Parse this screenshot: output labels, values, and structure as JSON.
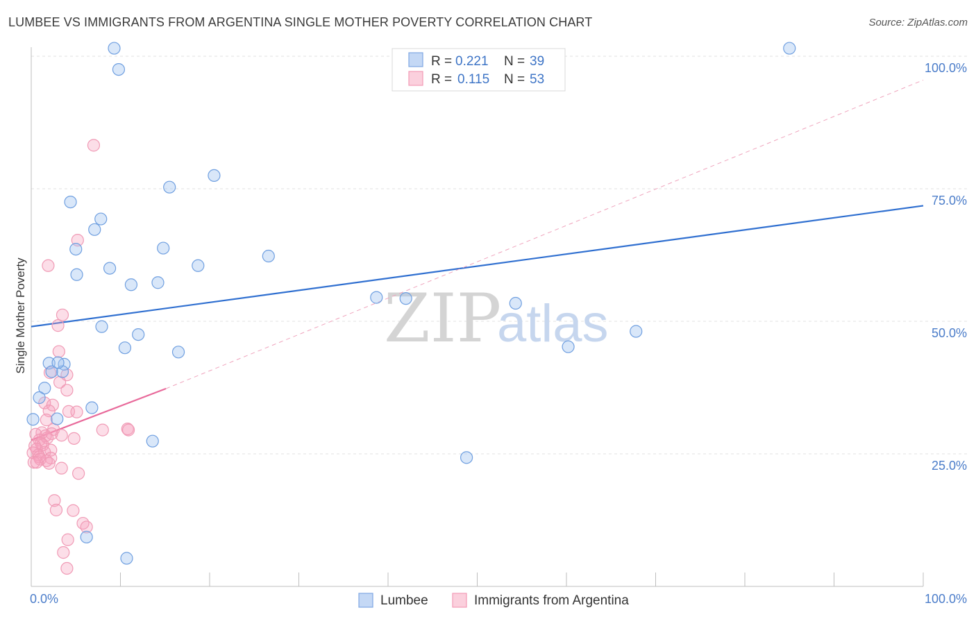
{
  "header": {
    "title": "LUMBEE VS IMMIGRANTS FROM ARGENTINA SINGLE MOTHER POVERTY CORRELATION CHART",
    "source": "Source: ZipAtlas.com"
  },
  "legend": {
    "rows": [
      {
        "r_label": "R =",
        "r_value": "0.221",
        "n_label": "N =",
        "n_value": "39"
      },
      {
        "r_label": "R =",
        "r_value": "0.115",
        "n_label": "N =",
        "n_value": "53"
      }
    ]
  },
  "watermark": {
    "zip": "ZIP",
    "atlas": "atlas"
  },
  "chart_data": {
    "type": "scatter",
    "title": "LUMBEE VS IMMIGRANTS FROM ARGENTINA SINGLE MOTHER POVERTY CORRELATION CHART",
    "xlabel": "",
    "ylabel": "Single Mother Poverty",
    "xlim": [
      0,
      100
    ],
    "ylim": [
      0,
      105
    ],
    "x_tick_labels": [
      "0.0%",
      "100.0%"
    ],
    "y_tick_labels": [
      "25.0%",
      "50.0%",
      "75.0%",
      "100.0%"
    ],
    "y_tick_values": [
      25,
      50,
      75,
      100
    ],
    "grid": "horizontal dashed",
    "legend_position": "top-center",
    "colors": {
      "lumbee": "#6f9fe0",
      "argentina": "#f08cab",
      "lumbee_line": "#2f6fd0",
      "argentina_line": "#e8699a"
    },
    "series": [
      {
        "name": "Lumbee",
        "r": 0.221,
        "n": 39,
        "points": [
          [
            9.3,
            101.5
          ],
          [
            9.8,
            97.5
          ],
          [
            85,
            101.5
          ],
          [
            15.5,
            75.3
          ],
          [
            20.5,
            77.5
          ],
          [
            4.4,
            72.5
          ],
          [
            7.8,
            69.3
          ],
          [
            7.1,
            67.3
          ],
          [
            14.8,
            63.8
          ],
          [
            5.0,
            63.6
          ],
          [
            26.6,
            62.3
          ],
          [
            8.8,
            60.0
          ],
          [
            18.7,
            60.5
          ],
          [
            5.1,
            58.8
          ],
          [
            11.2,
            56.9
          ],
          [
            14.2,
            57.3
          ],
          [
            54.3,
            53.4
          ],
          [
            42.0,
            54.3
          ],
          [
            38.7,
            54.5
          ],
          [
            7.9,
            49.0
          ],
          [
            12.0,
            47.5
          ],
          [
            60.2,
            45.2
          ],
          [
            10.5,
            45.0
          ],
          [
            16.5,
            44.2
          ],
          [
            2.0,
            42.1
          ],
          [
            3.7,
            41.9
          ],
          [
            3.5,
            40.5
          ],
          [
            2.3,
            40.5
          ],
          [
            1.5,
            37.4
          ],
          [
            0.9,
            35.6
          ],
          [
            6.8,
            33.7
          ],
          [
            2.9,
            31.6
          ],
          [
            0.2,
            31.5
          ],
          [
            13.6,
            27.4
          ],
          [
            48.8,
            24.3
          ],
          [
            6.2,
            9.3
          ],
          [
            10.7,
            5.3
          ],
          [
            67.8,
            48.1
          ],
          [
            3.0,
            42.2
          ]
        ],
        "trend": {
          "x": [
            0,
            100
          ],
          "y": [
            49.0,
            71.8
          ]
        }
      },
      {
        "name": "Immigrants from Argentina",
        "r": 0.115,
        "n": 53,
        "points": [
          [
            7.0,
            83.2
          ],
          [
            5.2,
            65.3
          ],
          [
            1.9,
            60.5
          ],
          [
            3.5,
            51.2
          ],
          [
            3.0,
            49.2
          ],
          [
            3.1,
            44.3
          ],
          [
            2.1,
            40.3
          ],
          [
            4.0,
            39.9
          ],
          [
            3.2,
            38.5
          ],
          [
            4.0,
            37.0
          ],
          [
            1.5,
            34.6
          ],
          [
            2.4,
            34.2
          ],
          [
            2.0,
            33.1
          ],
          [
            4.2,
            33.0
          ],
          [
            5.1,
            32.9
          ],
          [
            1.7,
            31.4
          ],
          [
            2.5,
            29.6
          ],
          [
            1.2,
            29.0
          ],
          [
            8.0,
            29.5
          ],
          [
            10.8,
            29.7
          ],
          [
            10.9,
            29.5
          ],
          [
            2.3,
            28.8
          ],
          [
            0.5,
            28.7
          ],
          [
            1.6,
            28.4
          ],
          [
            3.4,
            28.5
          ],
          [
            4.8,
            27.9
          ],
          [
            1.8,
            28.0
          ],
          [
            0.9,
            27.6
          ],
          [
            1.1,
            27.0
          ],
          [
            1.3,
            26.7
          ],
          [
            0.4,
            26.5
          ],
          [
            0.6,
            25.9
          ],
          [
            2.2,
            25.7
          ],
          [
            1.5,
            25.3
          ],
          [
            0.2,
            25.2
          ],
          [
            0.8,
            24.8
          ],
          [
            0.9,
            24.4
          ],
          [
            2.2,
            24.2
          ],
          [
            1.0,
            24.0
          ],
          [
            1.7,
            23.7
          ],
          [
            0.3,
            23.4
          ],
          [
            0.6,
            23.4
          ],
          [
            2.0,
            23.2
          ],
          [
            3.4,
            22.3
          ],
          [
            5.3,
            21.3
          ],
          [
            2.6,
            16.2
          ],
          [
            2.8,
            14.4
          ],
          [
            4.7,
            14.3
          ],
          [
            5.8,
            11.9
          ],
          [
            6.2,
            11.2
          ],
          [
            4.1,
            8.8
          ],
          [
            3.6,
            6.4
          ],
          [
            4.0,
            3.4
          ]
        ],
        "trend": {
          "x": [
            0,
            15.1
          ],
          "y": [
            27.6,
            37.3
          ]
        },
        "trend_extension": {
          "x": [
            15.1,
            100
          ],
          "y": [
            37.3,
            95.5
          ]
        }
      }
    ]
  },
  "bottom_legend": {
    "items": [
      {
        "label": "Lumbee"
      },
      {
        "label": "Immigrants from Argentina"
      }
    ]
  }
}
